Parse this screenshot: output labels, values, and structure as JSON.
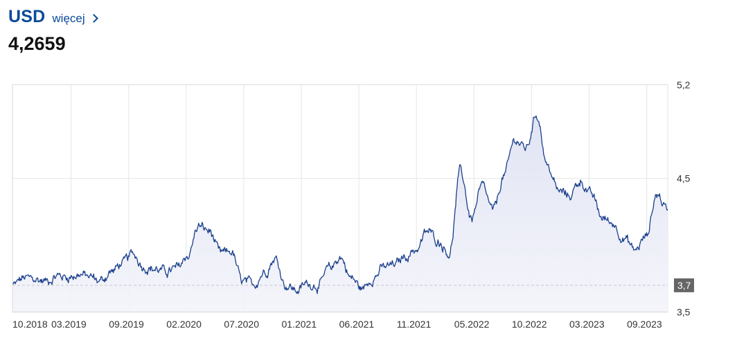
{
  "header": {
    "currency": "USD",
    "more_label": "więcej",
    "price": "4,2659"
  },
  "colors": {
    "accent": "#0a4a9a",
    "line": "#1a3f8c",
    "area": "#e9ebf6",
    "grid": "#e6e6e6",
    "reference_line": "#c8c8c8",
    "badge": "#666666"
  },
  "chart_data": {
    "type": "line",
    "title": "",
    "xlabel": "",
    "ylabel": "",
    "ylim": [
      3.5,
      5.2
    ],
    "yticks": [
      {
        "value": 5.2,
        "label": "5,2"
      },
      {
        "value": 4.5,
        "label": "4,5"
      },
      {
        "value": 3.5,
        "label": "3,5"
      }
    ],
    "xticks": [
      "10.2018",
      "03.2019",
      "09.2019",
      "02.2020",
      "07.2020",
      "01.2021",
      "06.2021",
      "11.2021",
      "05.2022",
      "10.2022",
      "03.2023",
      "09.2023"
    ],
    "reference": {
      "value": 3.7,
      "label": "3,7"
    },
    "grid": true,
    "x": [
      "2018-10",
      "2018-11",
      "2018-12",
      "2019-01",
      "2019-02",
      "2019-03",
      "2019-04",
      "2019-05",
      "2019-06",
      "2019-07",
      "2019-08",
      "2019-09",
      "2019-10",
      "2019-11",
      "2019-12",
      "2020-01",
      "2020-02",
      "2020-03",
      "2020-04",
      "2020-05",
      "2020-06",
      "2020-07",
      "2020-08",
      "2020-09",
      "2020-10",
      "2020-11",
      "2020-12",
      "2021-01",
      "2021-02",
      "2021-03",
      "2021-04",
      "2021-05",
      "2021-06",
      "2021-07",
      "2021-08",
      "2021-09",
      "2021-10",
      "2021-11",
      "2021-12",
      "2022-01",
      "2022-02",
      "2022-03",
      "2022-04",
      "2022-05",
      "2022-06",
      "2022-07",
      "2022-08",
      "2022-09",
      "2022-10",
      "2022-11",
      "2022-12",
      "2023-01",
      "2023-02",
      "2023-03",
      "2023-04",
      "2023-05",
      "2023-06",
      "2023-07",
      "2023-08",
      "2023-09",
      "2023-10"
    ],
    "series": [
      {
        "values": [
          3.7,
          3.75,
          3.74,
          3.73,
          3.77,
          3.76,
          3.78,
          3.76,
          3.73,
          3.8,
          3.86,
          3.93,
          3.84,
          3.82,
          3.8,
          3.82,
          3.92,
          4.14,
          4.1,
          3.93,
          3.95,
          3.72,
          3.7,
          3.8,
          3.9,
          3.7,
          3.66,
          3.71,
          3.7,
          3.82,
          3.91,
          3.75,
          3.67,
          3.76,
          3.83,
          3.85,
          3.92,
          3.97,
          4.1,
          4.03,
          3.94,
          4.55,
          4.2,
          4.43,
          4.25,
          4.52,
          4.79,
          4.72,
          4.98,
          4.58,
          4.4,
          4.37,
          4.48,
          4.37,
          4.2,
          4.16,
          4.05,
          3.96,
          4.06,
          4.38,
          4.2659
        ]
      }
    ]
  }
}
